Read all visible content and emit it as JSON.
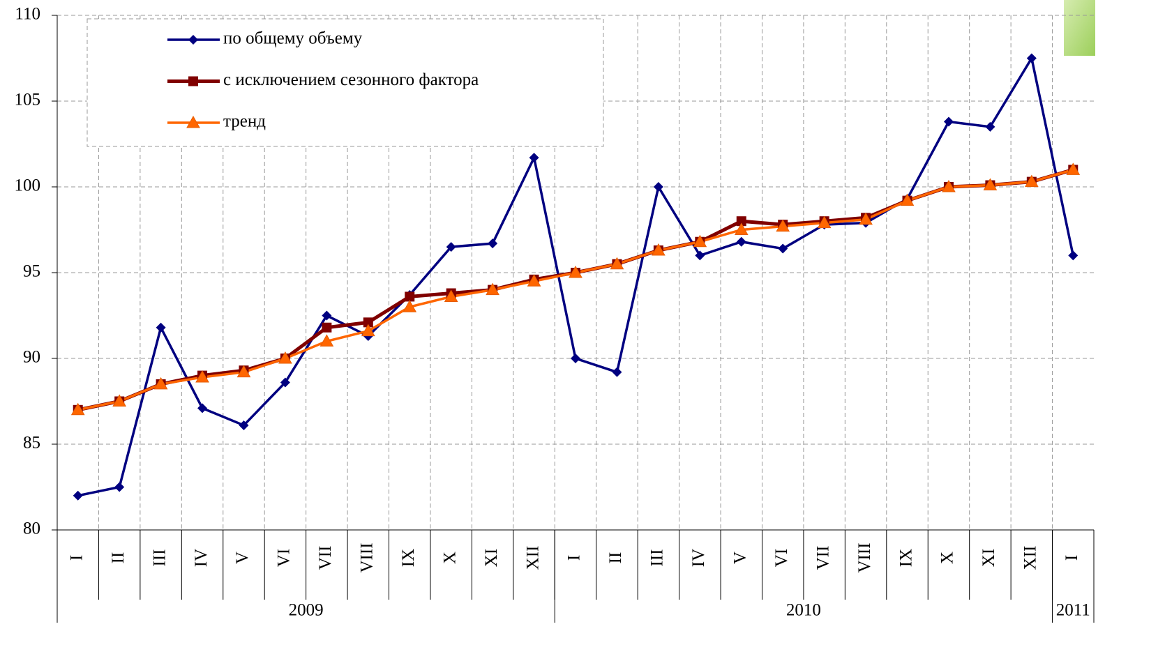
{
  "chart_data": {
    "type": "line",
    "categories": [
      "I",
      "II",
      "III",
      "IV",
      "V",
      "VI",
      "VII",
      "VIII",
      "IX",
      "X",
      "XI",
      "XII",
      "I",
      "II",
      "III",
      "IV",
      "V",
      "VI",
      "VII",
      "VIII",
      "IX",
      "X",
      "XI",
      "XII",
      "I"
    ],
    "groups": [
      {
        "label": "2009",
        "size": 12
      },
      {
        "label": "2010",
        "size": 12
      },
      {
        "label": "2011",
        "size": 1
      }
    ],
    "series": [
      {
        "name": "по общему объему",
        "color": "#000080",
        "marker": "diamond",
        "values": [
          82.0,
          82.5,
          91.8,
          87.1,
          86.1,
          88.6,
          92.5,
          91.3,
          93.7,
          96.5,
          96.7,
          101.7,
          90.0,
          89.2,
          100.0,
          96.0,
          96.8,
          96.4,
          97.8,
          97.9,
          99.3,
          103.8,
          103.5,
          107.5,
          96.0
        ]
      },
      {
        "name": "с исключением сезонного фактора",
        "color": "#800000",
        "marker": "square",
        "values": [
          87.0,
          87.5,
          88.5,
          89.0,
          89.3,
          90.0,
          91.8,
          92.1,
          93.6,
          93.8,
          94.0,
          94.6,
          95.0,
          95.5,
          96.3,
          96.8,
          98.0,
          97.8,
          98.0,
          98.2,
          99.2,
          100.0,
          100.1,
          100.3,
          101.0
        ]
      },
      {
        "name": "тренд",
        "color": "#ff6600",
        "marker": "triangle",
        "values": [
          87.0,
          87.5,
          88.5,
          88.9,
          89.2,
          90.0,
          91.0,
          91.6,
          93.0,
          93.6,
          94.0,
          94.5,
          95.0,
          95.5,
          96.3,
          96.8,
          97.5,
          97.7,
          97.9,
          98.1,
          99.2,
          100.0,
          100.1,
          100.3,
          101.0
        ]
      }
    ],
    "ylim": [
      80,
      110
    ],
    "yticks": [
      80,
      85,
      90,
      95,
      100,
      105,
      110
    ],
    "grid": true,
    "legend": "top-left"
  }
}
